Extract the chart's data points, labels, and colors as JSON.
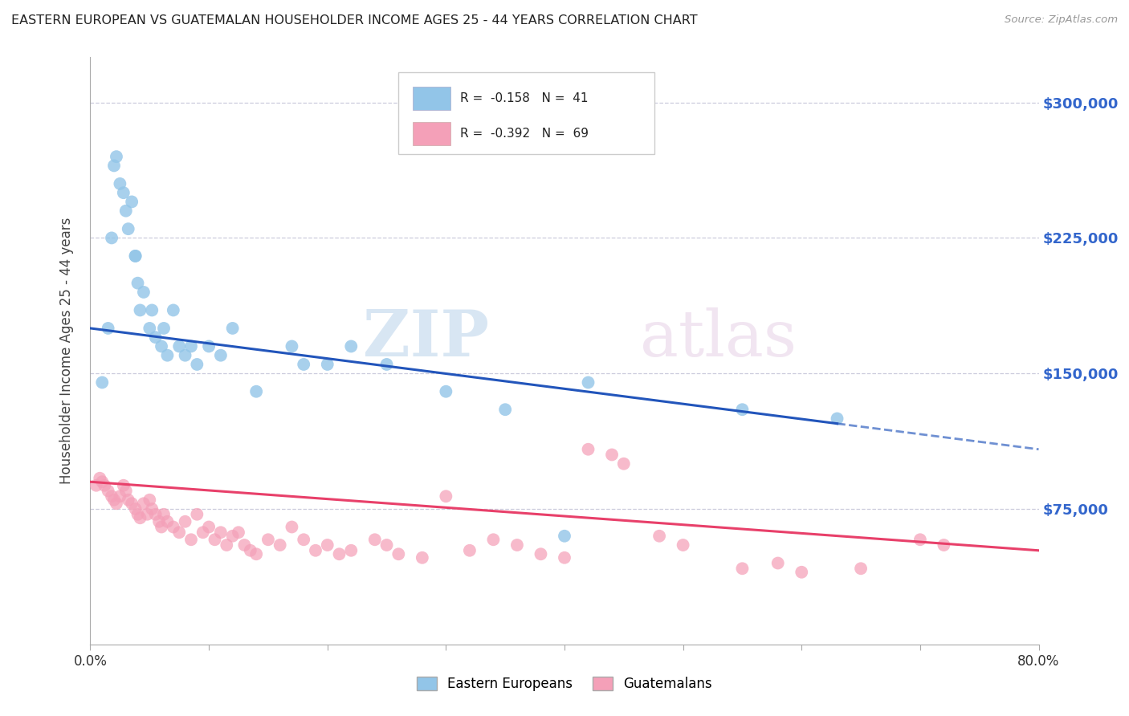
{
  "title": "EASTERN EUROPEAN VS GUATEMALAN HOUSEHOLDER INCOME AGES 25 - 44 YEARS CORRELATION CHART",
  "source": "Source: ZipAtlas.com",
  "ylabel": "Householder Income Ages 25 - 44 years",
  "xlim": [
    0.0,
    80.0
  ],
  "ylim": [
    0,
    325000
  ],
  "yticks": [
    0,
    75000,
    150000,
    225000,
    300000
  ],
  "ytick_labels": [
    "",
    "$75,000",
    "$150,000",
    "$225,000",
    "$300,000"
  ],
  "blue_R": -0.158,
  "blue_N": 41,
  "pink_R": -0.392,
  "pink_N": 69,
  "blue_color": "#92C5E8",
  "pink_color": "#F4A0B8",
  "blue_line_color": "#2255BB",
  "pink_line_color": "#E8406A",
  "legend_blue_label": "Eastern Europeans",
  "legend_pink_label": "Guatemalans",
  "blue_line_x0": 0,
  "blue_line_y0": 175000,
  "blue_line_x1": 80,
  "blue_line_y1": 108000,
  "blue_solid_end": 63,
  "pink_line_x0": 0,
  "pink_line_y0": 90000,
  "pink_line_x1": 80,
  "pink_line_y1": 52000,
  "blue_x": [
    1.0,
    1.5,
    2.0,
    2.2,
    2.5,
    2.8,
    3.0,
    3.2,
    3.5,
    3.8,
    4.0,
    4.2,
    4.5,
    5.0,
    5.2,
    5.5,
    6.0,
    6.2,
    6.5,
    7.0,
    7.5,
    8.0,
    8.5,
    9.0,
    10.0,
    11.0,
    12.0,
    14.0,
    17.0,
    18.0,
    20.0,
    22.0,
    25.0,
    30.0,
    35.0,
    40.0,
    42.0,
    55.0,
    63.0,
    1.8,
    3.8
  ],
  "blue_y": [
    145000,
    175000,
    265000,
    270000,
    255000,
    250000,
    240000,
    230000,
    245000,
    215000,
    200000,
    185000,
    195000,
    175000,
    185000,
    170000,
    165000,
    175000,
    160000,
    185000,
    165000,
    160000,
    165000,
    155000,
    165000,
    160000,
    175000,
    140000,
    165000,
    155000,
    155000,
    165000,
    155000,
    140000,
    130000,
    60000,
    145000,
    130000,
    125000,
    225000,
    215000
  ],
  "pink_x": [
    0.5,
    0.8,
    1.0,
    1.2,
    1.5,
    1.8,
    2.0,
    2.2,
    2.5,
    2.8,
    3.0,
    3.2,
    3.5,
    3.8,
    4.0,
    4.2,
    4.5,
    4.8,
    5.0,
    5.2,
    5.5,
    5.8,
    6.0,
    6.2,
    6.5,
    7.0,
    7.5,
    8.0,
    8.5,
    9.0,
    9.5,
    10.0,
    10.5,
    11.0,
    11.5,
    12.0,
    12.5,
    13.0,
    13.5,
    14.0,
    15.0,
    16.0,
    17.0,
    18.0,
    19.0,
    20.0,
    21.0,
    22.0,
    24.0,
    25.0,
    26.0,
    28.0,
    30.0,
    32.0,
    34.0,
    36.0,
    38.0,
    40.0,
    42.0,
    44.0,
    45.0,
    48.0,
    50.0,
    55.0,
    58.0,
    60.0,
    65.0,
    70.0,
    72.0
  ],
  "pink_y": [
    88000,
    92000,
    90000,
    88000,
    85000,
    82000,
    80000,
    78000,
    82000,
    88000,
    85000,
    80000,
    78000,
    75000,
    72000,
    70000,
    78000,
    72000,
    80000,
    75000,
    72000,
    68000,
    65000,
    72000,
    68000,
    65000,
    62000,
    68000,
    58000,
    72000,
    62000,
    65000,
    58000,
    62000,
    55000,
    60000,
    62000,
    55000,
    52000,
    50000,
    58000,
    55000,
    65000,
    58000,
    52000,
    55000,
    50000,
    52000,
    58000,
    55000,
    50000,
    48000,
    82000,
    52000,
    58000,
    55000,
    50000,
    48000,
    108000,
    105000,
    100000,
    60000,
    55000,
    42000,
    45000,
    40000,
    42000,
    58000,
    55000
  ]
}
